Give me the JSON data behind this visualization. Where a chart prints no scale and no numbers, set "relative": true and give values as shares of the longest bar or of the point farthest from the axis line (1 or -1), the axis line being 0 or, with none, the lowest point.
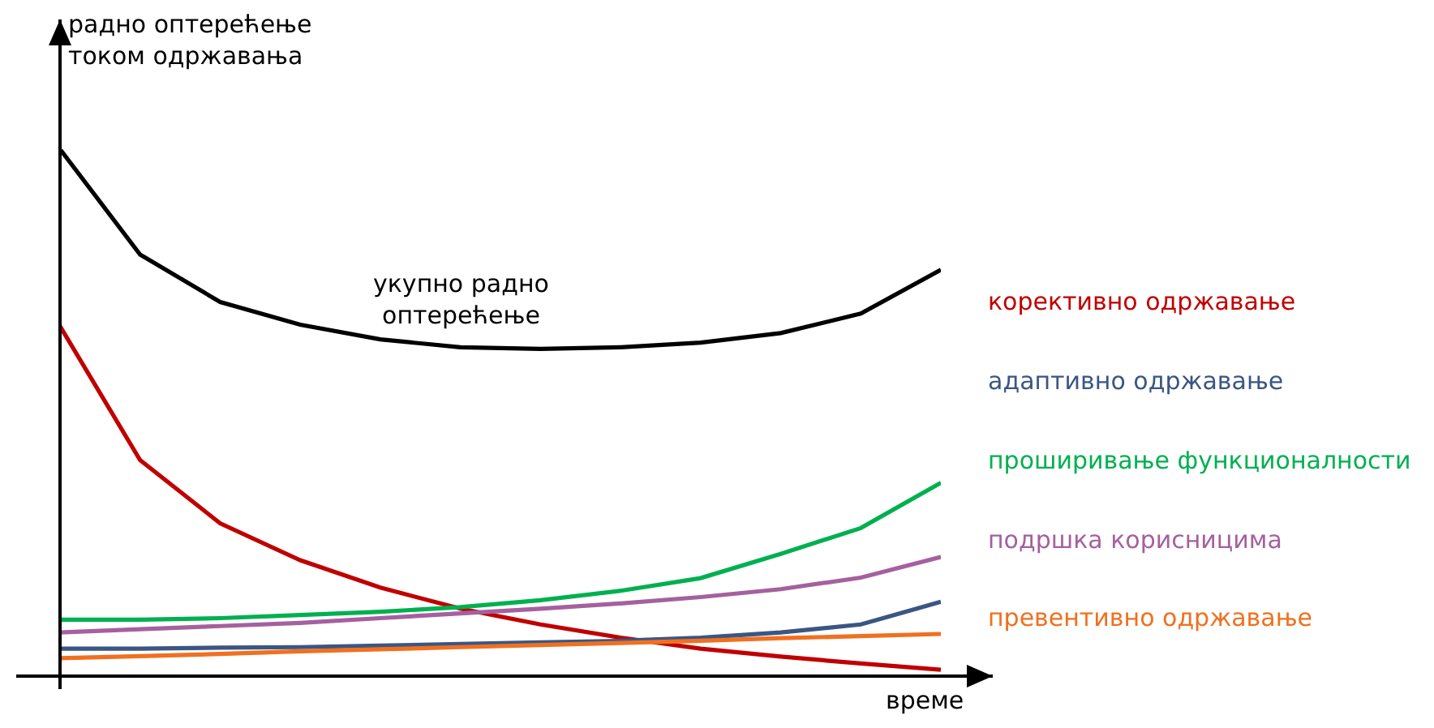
{
  "chart_data": {
    "type": "line",
    "relative": true,
    "ylabel": "радно оптерећење током одржавања",
    "xlabel": "време",
    "categories": [
      null,
      null,
      null,
      null,
      null,
      null,
      null,
      null,
      null,
      null,
      null,
      null
    ],
    "line_style": "solid",
    "marker": "none",
    "series": [
      {
        "name": "укупно радно оптерећење",
        "color": "#000000",
        "values": [
          1,
          0.8,
          0.71,
          0.667,
          0.639,
          0.624,
          0.621,
          0.624,
          0.633,
          0.651,
          0.688,
          0.771
        ]
      },
      {
        "name": "корективно одржавање",
        "color": "#c00000",
        "values": [
          0.664,
          0.41,
          0.29,
          0.22,
          0.168,
          0.128,
          0.098,
          0.073,
          0.052,
          0.037,
          0.024,
          0.012
        ]
      },
      {
        "name": "адаптивно одржавање",
        "color": "#3a5683",
        "values": [
          0.052,
          0.052,
          0.054,
          0.055,
          0.058,
          0.061,
          0.064,
          0.067,
          0.073,
          0.083,
          0.098,
          0.141
        ]
      },
      {
        "name": "проширивање функционалности",
        "color": "#00b050",
        "values": [
          0.107,
          0.107,
          0.11,
          0.116,
          0.122,
          0.131,
          0.144,
          0.162,
          0.186,
          0.232,
          0.281,
          0.367
        ]
      },
      {
        "name": "подршка корисницима",
        "color": "#a5609f",
        "values": [
          0.083,
          0.089,
          0.095,
          0.101,
          0.11,
          0.119,
          0.128,
          0.138,
          0.15,
          0.165,
          0.187,
          0.226
        ]
      },
      {
        "name": "превентивно одржавање",
        "color": "#f07020",
        "values": [
          0.034,
          0.038,
          0.042,
          0.047,
          0.051,
          0.055,
          0.059,
          0.063,
          0.067,
          0.072,
          0.076,
          0.08
        ]
      }
    ]
  }
}
